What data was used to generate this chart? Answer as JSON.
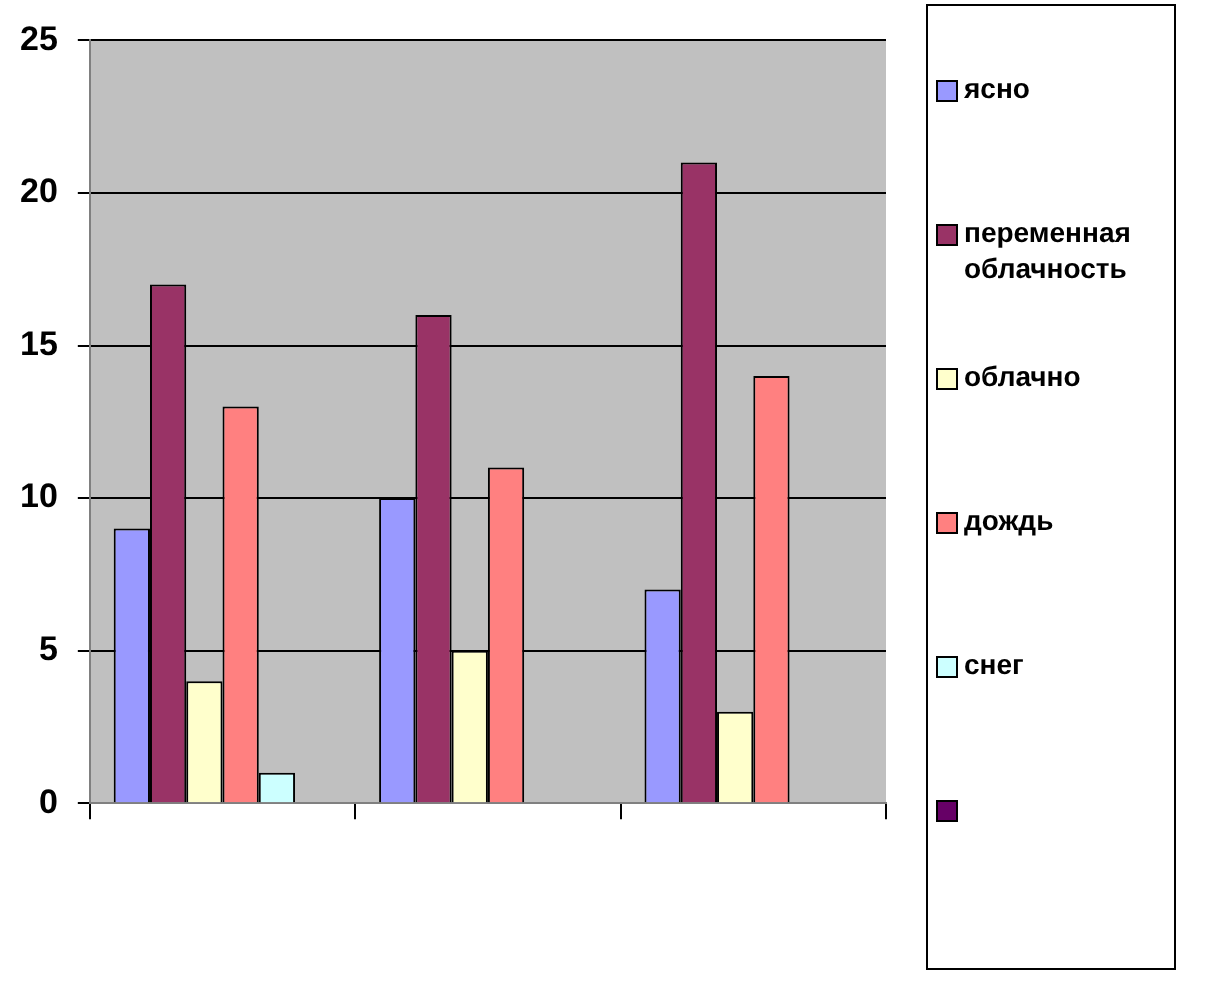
{
  "chart_data": {
    "type": "bar",
    "categories": [
      null,
      null,
      null
    ],
    "series": [
      {
        "name": "ясно",
        "color": "#9999ff",
        "values": [
          9,
          10,
          7
        ]
      },
      {
        "name": "переменная облачность",
        "color": "#993366",
        "values": [
          17,
          16,
          21
        ]
      },
      {
        "name": "облачно",
        "color": "#ffffcc",
        "values": [
          4,
          5,
          3
        ]
      },
      {
        "name": "дождь",
        "color": "#ff8080",
        "values": [
          13,
          11,
          14
        ]
      },
      {
        "name": "снег",
        "color": "#ccffff",
        "values": [
          1,
          0,
          0
        ]
      },
      {
        "color": "#660066",
        "values": [
          null,
          null,
          null
        ]
      }
    ],
    "ylim": [
      0,
      25
    ],
    "yticks": [
      0,
      5,
      10,
      15,
      20,
      25
    ],
    "grid": "y",
    "legend": "right"
  }
}
